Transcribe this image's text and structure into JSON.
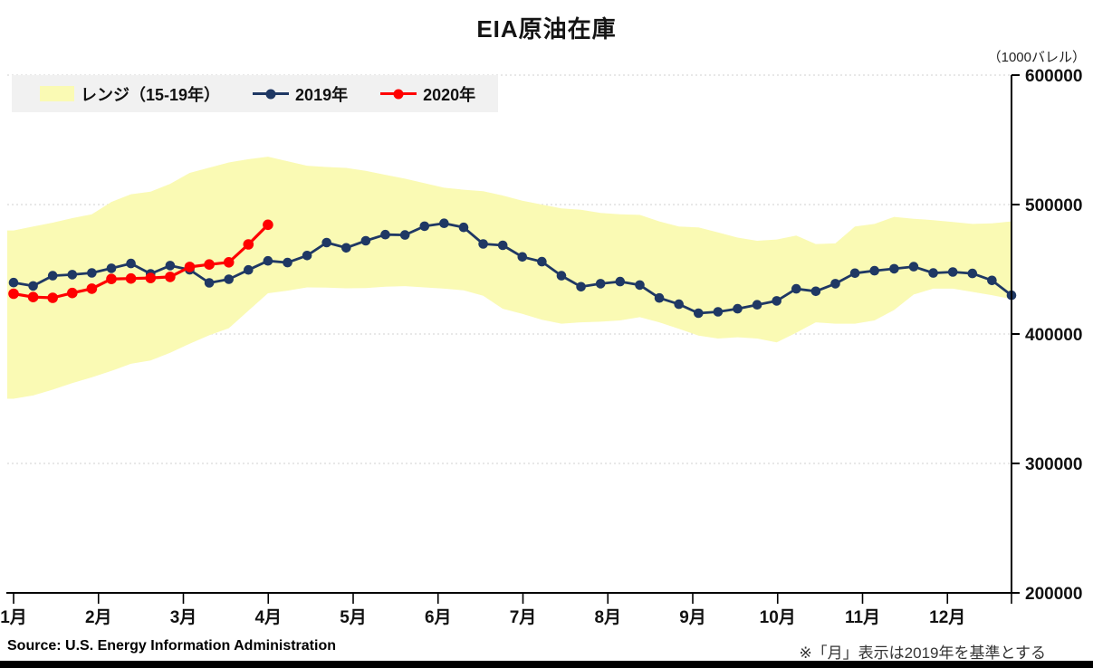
{
  "title": "EIA原油在庫",
  "unit_label": "（1000バレル）",
  "legend": {
    "range_label": "レンジ（15-19年）",
    "y2019_label": "2019年",
    "y2020_label": "2020年"
  },
  "source": "Source: U.S. Energy Information Administration",
  "note": "※「月」表示は2019年を基準とする",
  "colors": {
    "band": "#FAFAB4",
    "line2019": "#1F3864",
    "line2020": "#FF0000",
    "grid": "#D9D9D9",
    "axis": "#000000",
    "legend_bg": "#F1F1F1",
    "text": "#111111"
  },
  "chart_data": {
    "type": "line",
    "title": "EIA原油在庫",
    "ylabel": "1000バレル",
    "ylim": [
      200000,
      600000
    ],
    "grid": "horizontal-dashed",
    "legend_position": "top-left",
    "y_axis": {
      "ticks": [
        600000,
        500000,
        400000,
        300000,
        200000
      ]
    },
    "x_axis": {
      "tick_labels": [
        "1月",
        "2月",
        "3月",
        "4月",
        "5月",
        "6月",
        "7月",
        "8月",
        "9月",
        "10月",
        "11月",
        "12月"
      ]
    },
    "band": {
      "name": "レンジ（15-19年）",
      "top": [
        480000,
        483000,
        486000,
        489500,
        492500,
        502000,
        508000,
        510000,
        516000,
        524500,
        528500,
        532500,
        535000,
        537000,
        533500,
        530000,
        529000,
        528300,
        526000,
        523000,
        520000,
        516500,
        513000,
        511500,
        510300,
        507000,
        503000,
        500000,
        497000,
        496000,
        493500,
        492500,
        492000,
        487000,
        483000,
        482300,
        478500,
        474500,
        472000,
        473000,
        476000,
        469500,
        470000,
        483000,
        485000,
        490500,
        489000,
        488000,
        486500,
        485000,
        485500,
        487000
      ],
      "bottom": [
        350000,
        352500,
        357000,
        362000,
        366500,
        371500,
        377000,
        379500,
        385500,
        392500,
        399000,
        404500,
        418000,
        431500,
        433500,
        436000,
        435800,
        435300,
        435500,
        436500,
        437000,
        436000,
        435000,
        433800,
        429500,
        419500,
        415500,
        411000,
        408000,
        409000,
        409500,
        410500,
        413000,
        409000,
        404000,
        398800,
        396500,
        397500,
        396500,
        393500,
        401000,
        409000,
        408000,
        408000,
        410500,
        418500,
        430500,
        435000,
        435000,
        432500,
        430000,
        427000
      ]
    },
    "series": [
      {
        "name": "2019年",
        "color_key": "line2019",
        "values": [
          439700,
          437100,
          445000,
          445900,
          447200,
          450800,
          454500,
          446500,
          452900,
          449600,
          439500,
          442300,
          449500,
          456500,
          455200,
          460600,
          470600,
          466600,
          472000,
          476800,
          476500,
          483300,
          485500,
          482400,
          469600,
          468500,
          459600,
          455900,
          445000,
          436500,
          438900,
          440500,
          437800,
          427800,
          423000,
          416100,
          417100,
          419500,
          422600,
          425600,
          434900,
          433000,
          438900,
          447000,
          448900,
          450400,
          452000,
          447100,
          447900,
          446800,
          441400,
          429900
        ]
      },
      {
        "name": "2020年",
        "color_key": "line2020",
        "values": [
          431100,
          428500,
          428000,
          431700,
          435000,
          442500,
          442900,
          443300,
          444100,
          451800,
          453700,
          455400,
          469200,
          484400
        ]
      }
    ]
  }
}
